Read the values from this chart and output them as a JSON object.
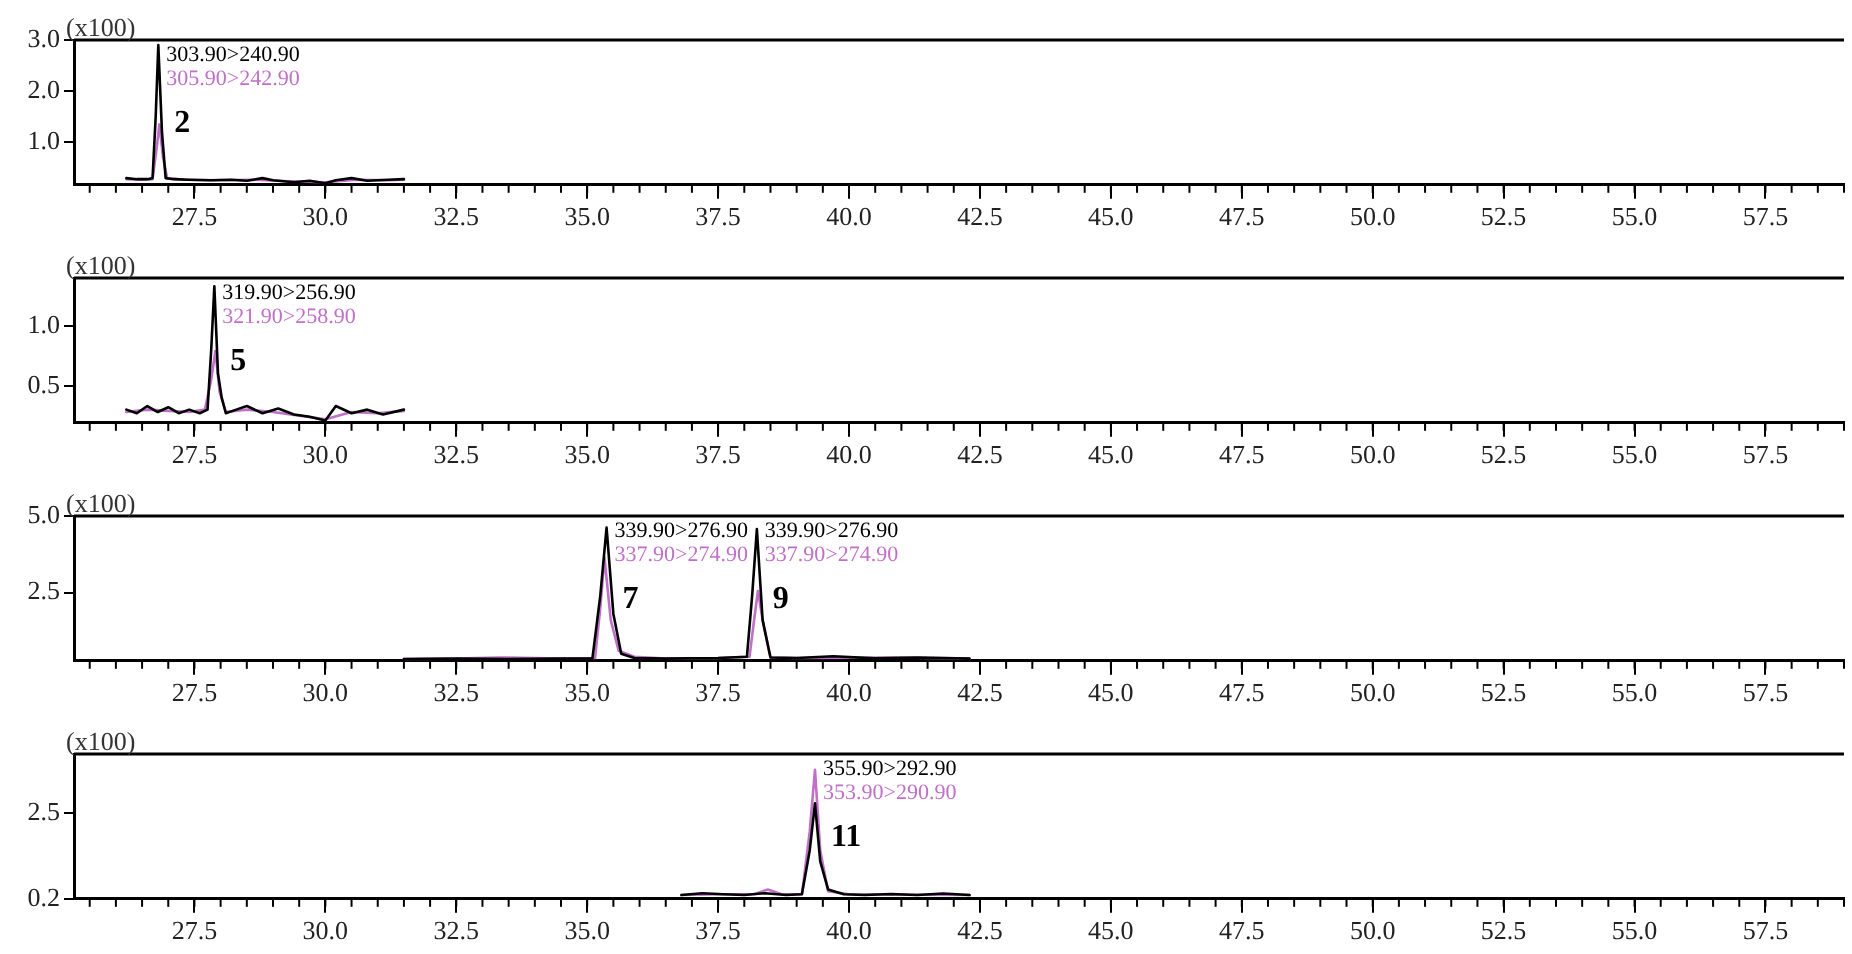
{
  "chart_data": [
    {
      "type": "line",
      "ylabel": "(x100)",
      "xlim": [
        25.2,
        59.0
      ],
      "ylim": [
        0.17,
        3.0
      ],
      "xticks": [
        {
          "value": 27.5,
          "label": "27.5"
        },
        {
          "value": 30,
          "label": "30.0"
        },
        {
          "value": 32.5,
          "label": "32.5"
        },
        {
          "value": 35,
          "label": "35.0"
        },
        {
          "value": 37.5,
          "label": "37.5"
        },
        {
          "value": 40,
          "label": "40.0"
        },
        {
          "value": 42.5,
          "label": "42.5"
        },
        {
          "value": 45,
          "label": "45.0"
        },
        {
          "value": 47.5,
          "label": "47.5"
        },
        {
          "value": 50,
          "label": "50.0"
        },
        {
          "value": 52.5,
          "label": "52.5"
        },
        {
          "value": 55,
          "label": "55.0"
        },
        {
          "value": 57.5,
          "label": "57.5"
        }
      ],
      "yticks": [
        {
          "value": 1,
          "label": "1.0"
        },
        {
          "value": 2,
          "label": "2.0"
        },
        {
          "value": 3,
          "label": "3.0"
        }
      ],
      "grid": false,
      "legend": false,
      "series": [
        {
          "name": "303.90>240.90",
          "color": "#000000",
          "x": [
            26.2,
            26.4,
            26.6,
            26.7,
            26.76,
            26.81,
            26.88,
            26.95,
            27.1,
            27.4,
            27.8,
            28.2,
            28.5,
            28.8,
            29.0,
            29.4,
            29.7,
            30.0,
            30.2,
            30.5,
            30.8,
            31.2,
            31.5
          ],
          "values": [
            0.3,
            0.28,
            0.28,
            0.3,
            1.5,
            2.9,
            1.2,
            0.3,
            0.28,
            0.27,
            0.26,
            0.27,
            0.25,
            0.3,
            0.26,
            0.22,
            0.25,
            0.2,
            0.26,
            0.3,
            0.25,
            0.27,
            0.28
          ]
        },
        {
          "name": "305.90>242.90",
          "color": "#c070c8",
          "x": [
            26.2,
            26.5,
            26.7,
            26.78,
            26.83,
            26.9,
            26.98,
            27.3,
            27.9,
            28.6,
            29.3,
            30.0,
            30.6,
            31.2,
            31.5
          ],
          "values": [
            0.28,
            0.27,
            0.28,
            0.9,
            1.35,
            0.7,
            0.3,
            0.27,
            0.26,
            0.27,
            0.24,
            0.22,
            0.27,
            0.26,
            0.27
          ]
        }
      ],
      "annotations": [
        "2"
      ]
    },
    {
      "type": "line",
      "ylabel": "(x100)",
      "xlim": [
        25.2,
        59.0
      ],
      "ylim": [
        0.19,
        1.4
      ],
      "xticks": [
        {
          "value": 27.5,
          "label": "27.5"
        },
        {
          "value": 30,
          "label": "30.0"
        },
        {
          "value": 32.5,
          "label": "32.5"
        },
        {
          "value": 35,
          "label": "35.0"
        },
        {
          "value": 37.5,
          "label": "37.5"
        },
        {
          "value": 40,
          "label": "40.0"
        },
        {
          "value": 42.5,
          "label": "42.5"
        },
        {
          "value": 45,
          "label": "45.0"
        },
        {
          "value": 47.5,
          "label": "47.5"
        },
        {
          "value": 50,
          "label": "50.0"
        },
        {
          "value": 52.5,
          "label": "52.5"
        },
        {
          "value": 55,
          "label": "55.0"
        },
        {
          "value": 57.5,
          "label": "57.5"
        }
      ],
      "yticks": [
        {
          "value": 0.5,
          "label": "0.5"
        },
        {
          "value": 1,
          "label": "1.0"
        }
      ],
      "grid": false,
      "legend": false,
      "series": [
        {
          "name": "319.90>256.90",
          "color": "#000000",
          "x": [
            26.2,
            26.4,
            26.6,
            26.8,
            27.0,
            27.2,
            27.4,
            27.6,
            27.75,
            27.82,
            27.88,
            27.95,
            28.02,
            28.1,
            28.3,
            28.5,
            28.8,
            29.1,
            29.4,
            29.7,
            30.0,
            30.2,
            30.5,
            30.8,
            31.1,
            31.5
          ],
          "values": [
            0.3,
            0.27,
            0.33,
            0.28,
            0.32,
            0.27,
            0.3,
            0.27,
            0.3,
            0.8,
            1.33,
            0.6,
            0.4,
            0.27,
            0.3,
            0.33,
            0.27,
            0.31,
            0.26,
            0.24,
            0.21,
            0.33,
            0.27,
            0.3,
            0.26,
            0.3
          ]
        },
        {
          "name": "321.90>258.90",
          "color": "#c070c8",
          "x": [
            26.2,
            26.6,
            27.0,
            27.4,
            27.7,
            27.82,
            27.9,
            27.98,
            28.1,
            28.5,
            29.0,
            29.5,
            30.0,
            30.5,
            31.0,
            31.5
          ],
          "values": [
            0.28,
            0.3,
            0.29,
            0.28,
            0.3,
            0.55,
            0.79,
            0.45,
            0.28,
            0.3,
            0.28,
            0.25,
            0.22,
            0.28,
            0.27,
            0.29
          ]
        }
      ],
      "annotations": [
        "5"
      ]
    },
    {
      "type": "line",
      "ylabel": "(x100)",
      "xlim": [
        25.2,
        59.0
      ],
      "ylim": [
        0.27,
        5.0
      ],
      "xticks": [
        {
          "value": 27.5,
          "label": "27.5"
        },
        {
          "value": 30,
          "label": "30.0"
        },
        {
          "value": 32.5,
          "label": "32.5"
        },
        {
          "value": 35,
          "label": "35.0"
        },
        {
          "value": 37.5,
          "label": "37.5"
        },
        {
          "value": 40,
          "label": "40.0"
        },
        {
          "value": 42.5,
          "label": "42.5"
        },
        {
          "value": 45,
          "label": "45.0"
        },
        {
          "value": 47.5,
          "label": "47.5"
        },
        {
          "value": 50,
          "label": "50.0"
        },
        {
          "value": 52.5,
          "label": "52.5"
        },
        {
          "value": 55,
          "label": "55.0"
        },
        {
          "value": 57.5,
          "label": "57.5"
        }
      ],
      "yticks": [
        {
          "value": 2.5,
          "label": "2.5"
        },
        {
          "value": 5,
          "label": "5.0"
        }
      ],
      "grid": false,
      "legend": false,
      "series": [
        {
          "name": "339.90>276.90",
          "color": "#000000",
          "x": [
            31.5,
            32.5,
            33.5,
            34.5,
            35.1,
            35.25,
            35.37,
            35.5,
            35.65,
            35.9,
            36.5,
            37.5,
            38.05,
            38.15,
            38.24,
            38.35,
            38.5,
            39.0,
            39.7,
            40.5,
            41.3,
            42.3
          ],
          "values": [
            0.33,
            0.34,
            0.33,
            0.34,
            0.35,
            2.4,
            4.62,
            1.8,
            0.5,
            0.36,
            0.34,
            0.36,
            0.4,
            2.4,
            4.57,
            1.6,
            0.38,
            0.36,
            0.42,
            0.35,
            0.38,
            0.34
          ]
        },
        {
          "name": "337.90>274.90",
          "color": "#c070c8",
          "x": [
            31.5,
            32.5,
            33.3,
            34.5,
            35.15,
            35.25,
            35.33,
            35.45,
            35.6,
            35.9,
            36.5,
            37.5,
            38.1,
            38.18,
            38.26,
            38.36,
            38.5,
            39.0,
            40.0,
            41.0,
            42.3
          ],
          "values": [
            0.33,
            0.34,
            0.38,
            0.34,
            0.36,
            2.0,
            3.64,
            1.6,
            0.6,
            0.4,
            0.34,
            0.36,
            0.4,
            1.5,
            2.55,
            1.5,
            0.38,
            0.36,
            0.37,
            0.38,
            0.34
          ]
        }
      ],
      "annotations": [
        "7",
        "9"
      ]
    },
    {
      "type": "line",
      "ylabel": "(x100)",
      "xlim": [
        25.2,
        59.0
      ],
      "ylim": [
        0.2,
        4.07
      ],
      "xticks": [
        {
          "value": 27.5,
          "label": "27.5"
        },
        {
          "value": 30,
          "label": "30.0"
        },
        {
          "value": 32.5,
          "label": "32.5"
        },
        {
          "value": 35,
          "label": "35.0"
        },
        {
          "value": 37.5,
          "label": "37.5"
        },
        {
          "value": 40,
          "label": "40.0"
        },
        {
          "value": 42.5,
          "label": "42.5"
        },
        {
          "value": 45,
          "label": "45.0"
        },
        {
          "value": 47.5,
          "label": "47.5"
        },
        {
          "value": 50,
          "label": "50.0"
        },
        {
          "value": 52.5,
          "label": "52.5"
        },
        {
          "value": 55,
          "label": "55.0"
        },
        {
          "value": 57.5,
          "label": "57.5"
        }
      ],
      "yticks": [
        {
          "value": 0.2,
          "label": "0.2"
        },
        {
          "value": 2.5,
          "label": "2.5"
        }
      ],
      "grid": false,
      "legend": false,
      "series": [
        {
          "name": "355.90>292.90",
          "color": "#000000",
          "x": [
            36.8,
            37.2,
            37.6,
            38.0,
            38.4,
            38.8,
            39.1,
            39.25,
            39.35,
            39.45,
            39.6,
            39.9,
            40.3,
            40.8,
            41.3,
            41.8,
            42.3
          ],
          "values": [
            0.3,
            0.35,
            0.32,
            0.3,
            0.35,
            0.3,
            0.32,
            1.5,
            2.75,
            1.2,
            0.45,
            0.32,
            0.3,
            0.33,
            0.3,
            0.34,
            0.3
          ]
        },
        {
          "name": "353.90>290.90",
          "color": "#c070c8",
          "x": [
            36.8,
            37.5,
            38.2,
            38.45,
            38.7,
            39.1,
            39.25,
            39.35,
            39.45,
            39.6,
            40.0,
            41.0,
            42.3
          ],
          "values": [
            0.3,
            0.32,
            0.33,
            0.45,
            0.33,
            0.32,
            2.0,
            3.65,
            1.5,
            0.4,
            0.32,
            0.31,
            0.3
          ]
        }
      ],
      "annotations": [
        "11"
      ]
    }
  ]
}
